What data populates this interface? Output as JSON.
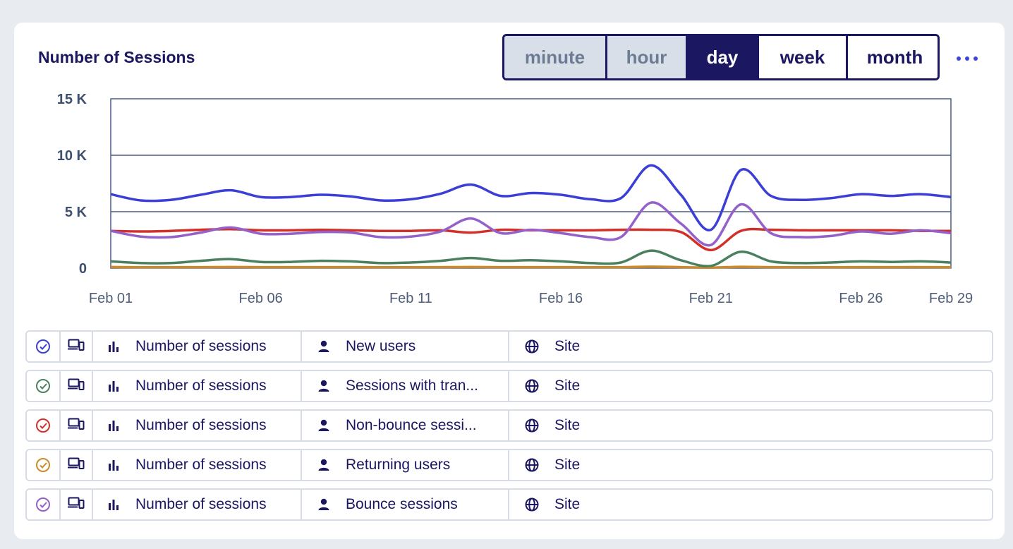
{
  "header": {
    "title": "Number of Sessions"
  },
  "granularity": {
    "options": [
      {
        "label": "minute",
        "state": "disabled"
      },
      {
        "label": "hour",
        "state": "disabled"
      },
      {
        "label": "day",
        "state": "active"
      },
      {
        "label": "week",
        "state": "normal"
      },
      {
        "label": "month",
        "state": "normal"
      }
    ]
  },
  "chart_data": {
    "type": "line",
    "title": "",
    "xlabel": "",
    "ylabel": "",
    "ylim": [
      0,
      15000
    ],
    "yticks": [
      {
        "value": 0,
        "label": "0"
      },
      {
        "value": 5000,
        "label": "5 K"
      },
      {
        "value": 10000,
        "label": "10 K"
      },
      {
        "value": 15000,
        "label": "15 K"
      }
    ],
    "xlim": [
      1,
      29
    ],
    "xticks": [
      {
        "value": 1,
        "label": "Feb 01"
      },
      {
        "value": 6,
        "label": "Feb 06"
      },
      {
        "value": 11,
        "label": "Feb 11"
      },
      {
        "value": 16,
        "label": "Feb 16"
      },
      {
        "value": 21,
        "label": "Feb 21"
      },
      {
        "value": 26,
        "label": "Feb 26"
      },
      {
        "value": 29,
        "label": "Feb 29"
      }
    ],
    "grid": true,
    "x": [
      1,
      2,
      3,
      4,
      5,
      6,
      7,
      8,
      9,
      10,
      11,
      12,
      13,
      14,
      15,
      16,
      17,
      18,
      19,
      20,
      21,
      22,
      23,
      24,
      25,
      26,
      27,
      28,
      29
    ],
    "series": [
      {
        "color": "#3b3fd6",
        "values": [
          6550,
          6000,
          6050,
          6500,
          6900,
          6300,
          6300,
          6500,
          6350,
          6000,
          6100,
          6600,
          7400,
          6400,
          6650,
          6500,
          6100,
          6200,
          9100,
          6500,
          3400,
          8700,
          6400,
          6050,
          6200,
          6550,
          6400,
          6550,
          6300
        ]
      },
      {
        "color": "#4a8060",
        "values": [
          600,
          450,
          450,
          650,
          800,
          550,
          550,
          650,
          600,
          450,
          500,
          650,
          900,
          650,
          700,
          600,
          450,
          500,
          1550,
          700,
          200,
          1450,
          600,
          450,
          500,
          600,
          550,
          600,
          500
        ]
      },
      {
        "color": "#d2302a",
        "values": [
          3300,
          3250,
          3300,
          3400,
          3450,
          3350,
          3350,
          3400,
          3350,
          3300,
          3300,
          3350,
          3150,
          3400,
          3350,
          3350,
          3350,
          3400,
          3400,
          3200,
          1600,
          3300,
          3400,
          3350,
          3350,
          3350,
          3350,
          3300,
          3300
        ]
      },
      {
        "color": "#cc8a2a",
        "values": [
          100,
          80,
          80,
          90,
          100,
          90,
          90,
          90,
          90,
          80,
          80,
          90,
          100,
          90,
          90,
          90,
          80,
          80,
          130,
          90,
          50,
          120,
          90,
          80,
          80,
          90,
          90,
          90,
          80
        ]
      },
      {
        "color": "#9361c9",
        "values": [
          3300,
          2800,
          2750,
          3150,
          3600,
          3050,
          3050,
          3200,
          3150,
          2750,
          2800,
          3250,
          4400,
          3100,
          3400,
          3100,
          2750,
          2750,
          5800,
          3950,
          2050,
          5650,
          3100,
          2750,
          2850,
          3250,
          3050,
          3350,
          3100
        ]
      }
    ]
  },
  "legend": {
    "rows": [
      {
        "color": "#3b3fd6",
        "metric": "Number of sessions",
        "segment": "New users",
        "scope": "Site"
      },
      {
        "color": "#4a8060",
        "metric": "Number of sessions",
        "segment": "Sessions with tran...",
        "scope": "Site"
      },
      {
        "color": "#d2302a",
        "metric": "Number of sessions",
        "segment": "Non-bounce sessi...",
        "scope": "Site"
      },
      {
        "color": "#cc8a2a",
        "metric": "Number of sessions",
        "segment": "Returning users",
        "scope": "Site"
      },
      {
        "color": "#9361c9",
        "metric": "Number of sessions",
        "segment": "Bounce sessions",
        "scope": "Site"
      }
    ]
  }
}
